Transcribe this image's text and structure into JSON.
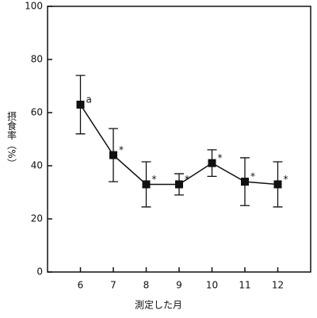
{
  "chart_data": {
    "type": "line",
    "x": [
      6,
      7,
      8,
      9,
      10,
      11,
      12
    ],
    "series": [
      {
        "color": "#111111",
        "values": [
          63,
          44,
          33,
          33,
          41,
          34,
          33
        ],
        "errors": [
          11,
          10,
          8.5,
          4,
          5,
          9,
          8.5
        ]
      }
    ],
    "annotations": [
      "a",
      "*",
      "*",
      "*",
      "*",
      "*",
      "*"
    ],
    "xlim": [
      5,
      13
    ],
    "xticks": [
      6,
      7,
      8,
      9,
      10,
      11,
      12
    ],
    "ylim": [
      0,
      100
    ],
    "yticks": [
      0,
      20,
      40,
      60,
      80,
      100
    ],
    "xlabel": "測定した月",
    "ylabel": "摂食率（%）"
  }
}
